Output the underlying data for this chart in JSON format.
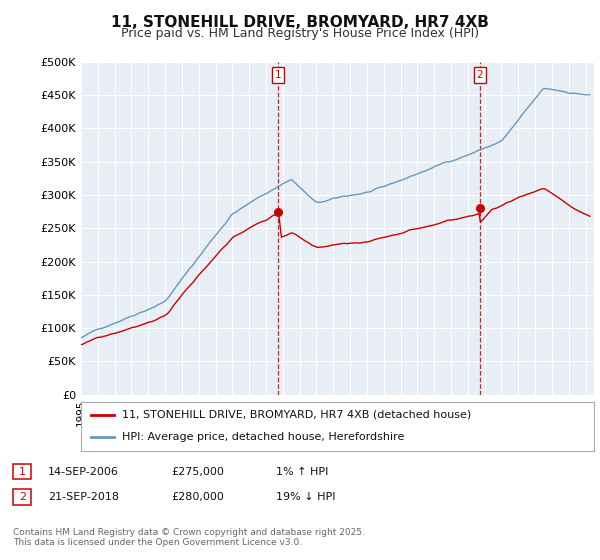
{
  "title": "11, STONEHILL DRIVE, BROMYARD, HR7 4XB",
  "subtitle": "Price paid vs. HM Land Registry's House Price Index (HPI)",
  "ylim": [
    0,
    500000
  ],
  "yticks": [
    0,
    50000,
    100000,
    150000,
    200000,
    250000,
    300000,
    350000,
    400000,
    450000,
    500000
  ],
  "ytick_labels": [
    "£0",
    "£50K",
    "£100K",
    "£150K",
    "£200K",
    "£250K",
    "£300K",
    "£350K",
    "£400K",
    "£450K",
    "£500K"
  ],
  "xlim_start": 1995.0,
  "xlim_end": 2025.5,
  "background_color": "#ffffff",
  "plot_bg_color": "#e8eef5",
  "grid_color": "#ffffff",
  "red_line_color": "#cc0000",
  "blue_line_color": "#6699bb",
  "vline_color": "#cc0000",
  "marker1_date": 2006.72,
  "marker1_price": 275000,
  "marker2_date": 2018.72,
  "marker2_price": 280000,
  "legend1": "11, STONEHILL DRIVE, BROMYARD, HR7 4XB (detached house)",
  "legend2": "HPI: Average price, detached house, Herefordshire",
  "footer": "Contains HM Land Registry data © Crown copyright and database right 2025.\nThis data is licensed under the Open Government Licence v3.0.",
  "title_fontsize": 11,
  "subtitle_fontsize": 9,
  "tick_fontsize": 8,
  "legend_fontsize": 8,
  "annotation_fontsize": 8,
  "footer_fontsize": 6.5
}
